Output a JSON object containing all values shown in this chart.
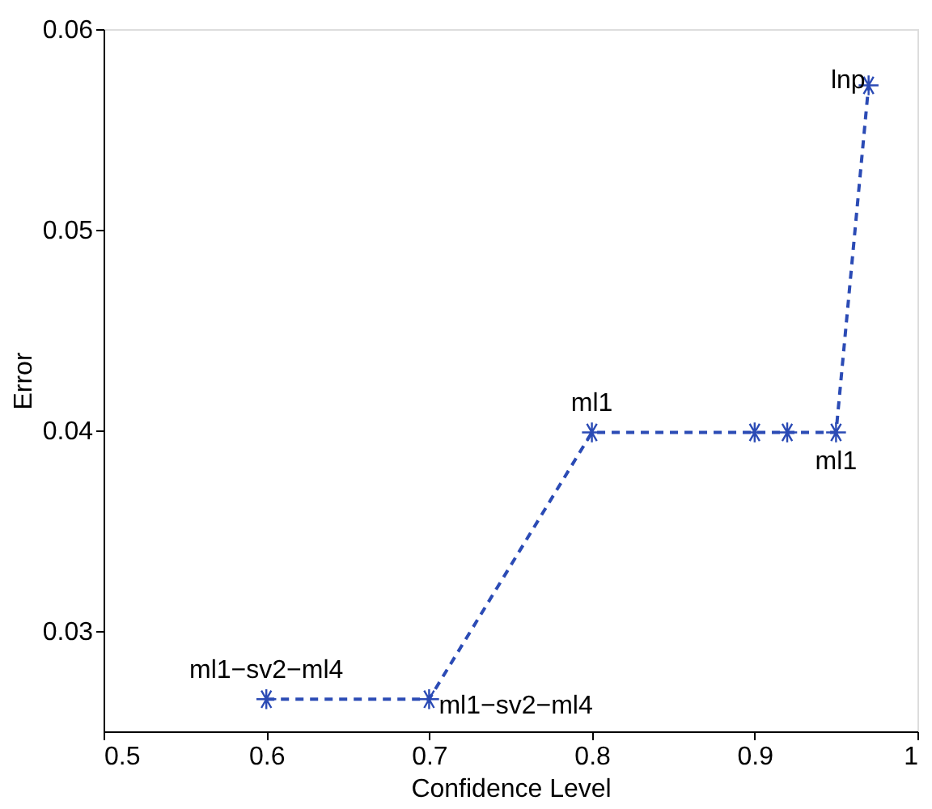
{
  "chart_data": {
    "type": "line",
    "xlabel": "Confidence Level",
    "ylabel": "Error",
    "x": [
      0.6,
      0.7,
      0.8,
      0.9,
      0.92,
      0.95,
      0.97
    ],
    "series": [
      {
        "color": "#2b4bb5",
        "values": [
          0.0266,
          0.0266,
          0.0399,
          0.0399,
          0.0399,
          0.0399,
          0.0572
        ]
      }
    ],
    "xlim": [
      0.5,
      1
    ],
    "xticks": [
      0.5,
      0.6,
      0.7,
      0.8,
      0.9,
      1
    ],
    "ylim": [
      0.025,
      0.06
    ],
    "yticks": [
      0.03,
      0.04,
      0.05,
      0.06
    ],
    "marker": "cross",
    "line_style": "dashed",
    "grid": false,
    "annotations": [
      {
        "text": "ml1−sv2−ml4",
        "x": 0.6,
        "y": 0.0266
      },
      {
        "text": "ml1−sv2−ml4",
        "x": 0.7,
        "y": 0.0266
      },
      {
        "text": "ml1",
        "x": 0.8,
        "y": 0.0399
      },
      {
        "text": "ml1",
        "x": 0.95,
        "y": 0.0399
      },
      {
        "text": "lnp",
        "x": 0.97,
        "y": 0.0572
      }
    ]
  }
}
